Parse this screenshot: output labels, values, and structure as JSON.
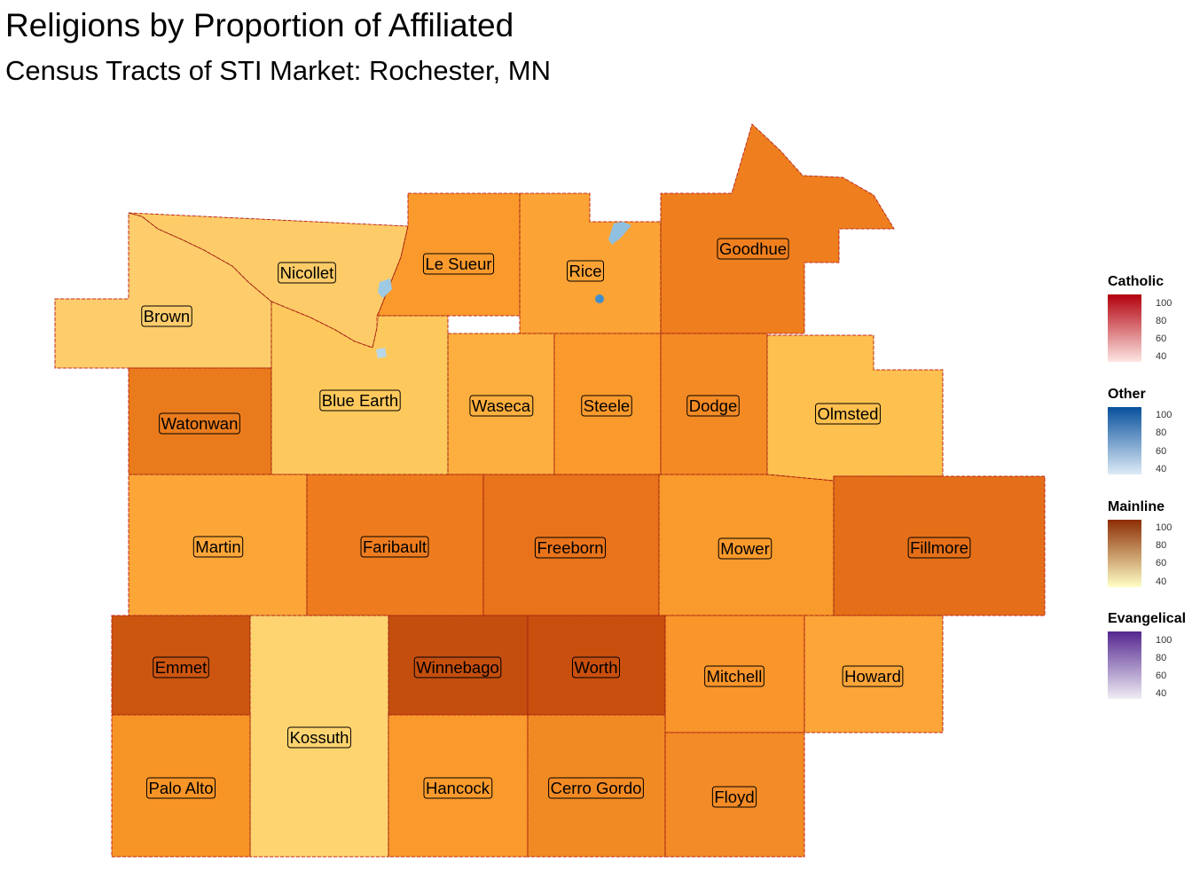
{
  "title": "Religions by Proportion of Affiliated",
  "subtitle": "Census Tracts of STI Market: Rochester, MN",
  "legends": [
    {
      "name": "Catholic",
      "ticks": [
        "100",
        "80",
        "60",
        "40"
      ],
      "color_low": "#fde6e3",
      "color_high": "#b3000c"
    },
    {
      "name": "Other",
      "ticks": [
        "100",
        "80",
        "60",
        "40"
      ],
      "color_low": "#deebf7",
      "color_high": "#08519c"
    },
    {
      "name": "Mainline",
      "ticks": [
        "100",
        "80",
        "60",
        "40"
      ],
      "color_low": "#ffffc6",
      "color_high": "#8c2d04"
    },
    {
      "name": "Evangelical",
      "ticks": [
        "100",
        "80",
        "60",
        "40"
      ],
      "color_low": "#efedf5",
      "color_high": "#54278f"
    }
  ],
  "counties": [
    {
      "name": "Brown",
      "color": "#fdcd6c"
    },
    {
      "name": "Nicollet",
      "color": "#fdcc68"
    },
    {
      "name": "Le Sueur",
      "color": "#fb9a2c"
    },
    {
      "name": "Rice",
      "color": "#fca336"
    },
    {
      "name": "Goodhue",
      "color": "#ef7f1e"
    },
    {
      "name": "Watonwan",
      "color": "#ea7b1c"
    },
    {
      "name": "Blue Earth",
      "color": "#fec95c"
    },
    {
      "name": "Waseca",
      "color": "#fcaf3e"
    },
    {
      "name": "Steele",
      "color": "#fb9a2c"
    },
    {
      "name": "Dodge",
      "color": "#f48a24"
    },
    {
      "name": "Olmsted",
      "color": "#fec04e"
    },
    {
      "name": "Martin",
      "color": "#fca638"
    },
    {
      "name": "Faribault",
      "color": "#ee7c1e"
    },
    {
      "name": "Freeborn",
      "color": "#e8731a"
    },
    {
      "name": "Mower",
      "color": "#f99a2c"
    },
    {
      "name": "Fillmore",
      "color": "#e46f18"
    },
    {
      "name": "Emmet",
      "color": "#cc5510"
    },
    {
      "name": "Kossuth",
      "color": "#fed470"
    },
    {
      "name": "Winnebago",
      "color": "#c44e0e"
    },
    {
      "name": "Worth",
      "color": "#c84f0e"
    },
    {
      "name": "Mitchell",
      "color": "#f9952a"
    },
    {
      "name": "Howard",
      "color": "#fca538"
    },
    {
      "name": "Palo Alto",
      "color": "#f79426"
    },
    {
      "name": "Hancock",
      "color": "#fa9a2c"
    },
    {
      "name": "Cerro Gordo",
      "color": "#f28a24"
    },
    {
      "name": "Floyd",
      "color": "#f38b26"
    }
  ]
}
